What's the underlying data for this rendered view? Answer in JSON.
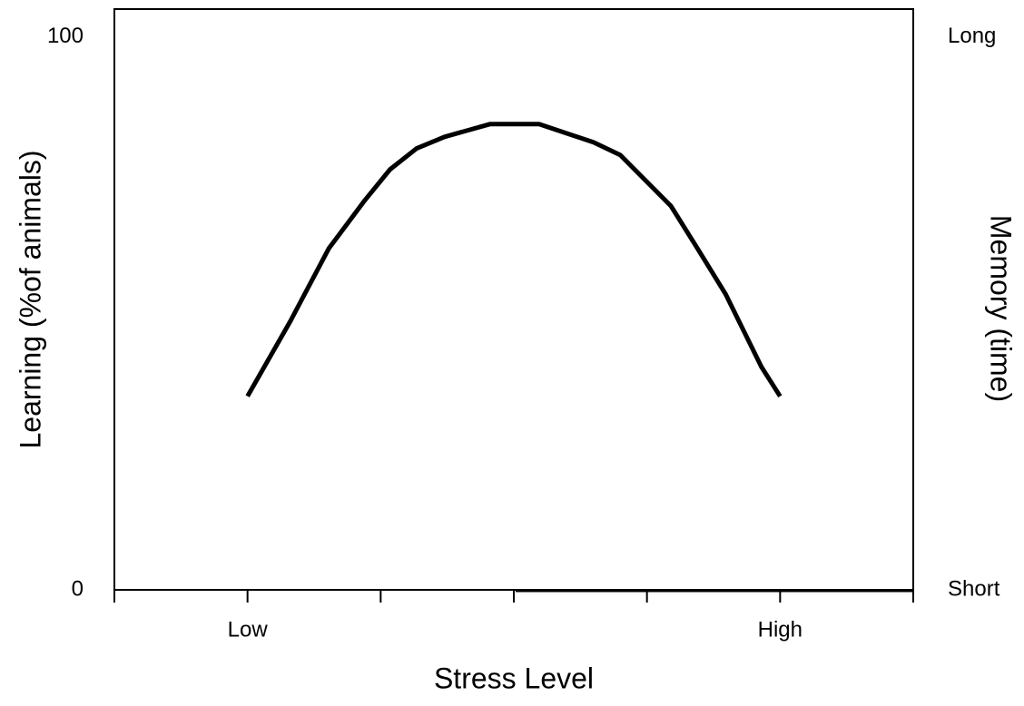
{
  "chart_data": {
    "type": "line",
    "x_label": "Stress Level",
    "y_label": "Learning (%of animals)",
    "y2_label": "Memory (time)",
    "xlim": [
      0,
      6
    ],
    "xticks": [
      0,
      {
        "value": 1,
        "label": "Low"
      },
      2,
      3,
      4,
      {
        "value": 5,
        "label": "High"
      },
      6
    ],
    "ylim": [
      0,
      105
    ],
    "yticks": [
      0,
      100
    ],
    "y2lim": [
      0,
      105
    ],
    "y2ticks": [
      {
        "value": 0,
        "label": "Short"
      },
      {
        "value": 100,
        "label": "Long"
      }
    ],
    "x": [
      1.0,
      1.32,
      1.61,
      1.88,
      2.07,
      2.27,
      2.48,
      2.82,
      3.19,
      3.6,
      3.8,
      4.18,
      4.38,
      4.59,
      4.86,
      5.0
    ],
    "series": [
      {
        "color": "#000000",
        "values": [
          35,
          48.5,
          61.7,
          70.4,
          76,
          79.8,
          81.9,
          84.2,
          84.2,
          80.9,
          78.6,
          69.4,
          61.7,
          53.5,
          40.3,
          35
        ]
      }
    ]
  }
}
